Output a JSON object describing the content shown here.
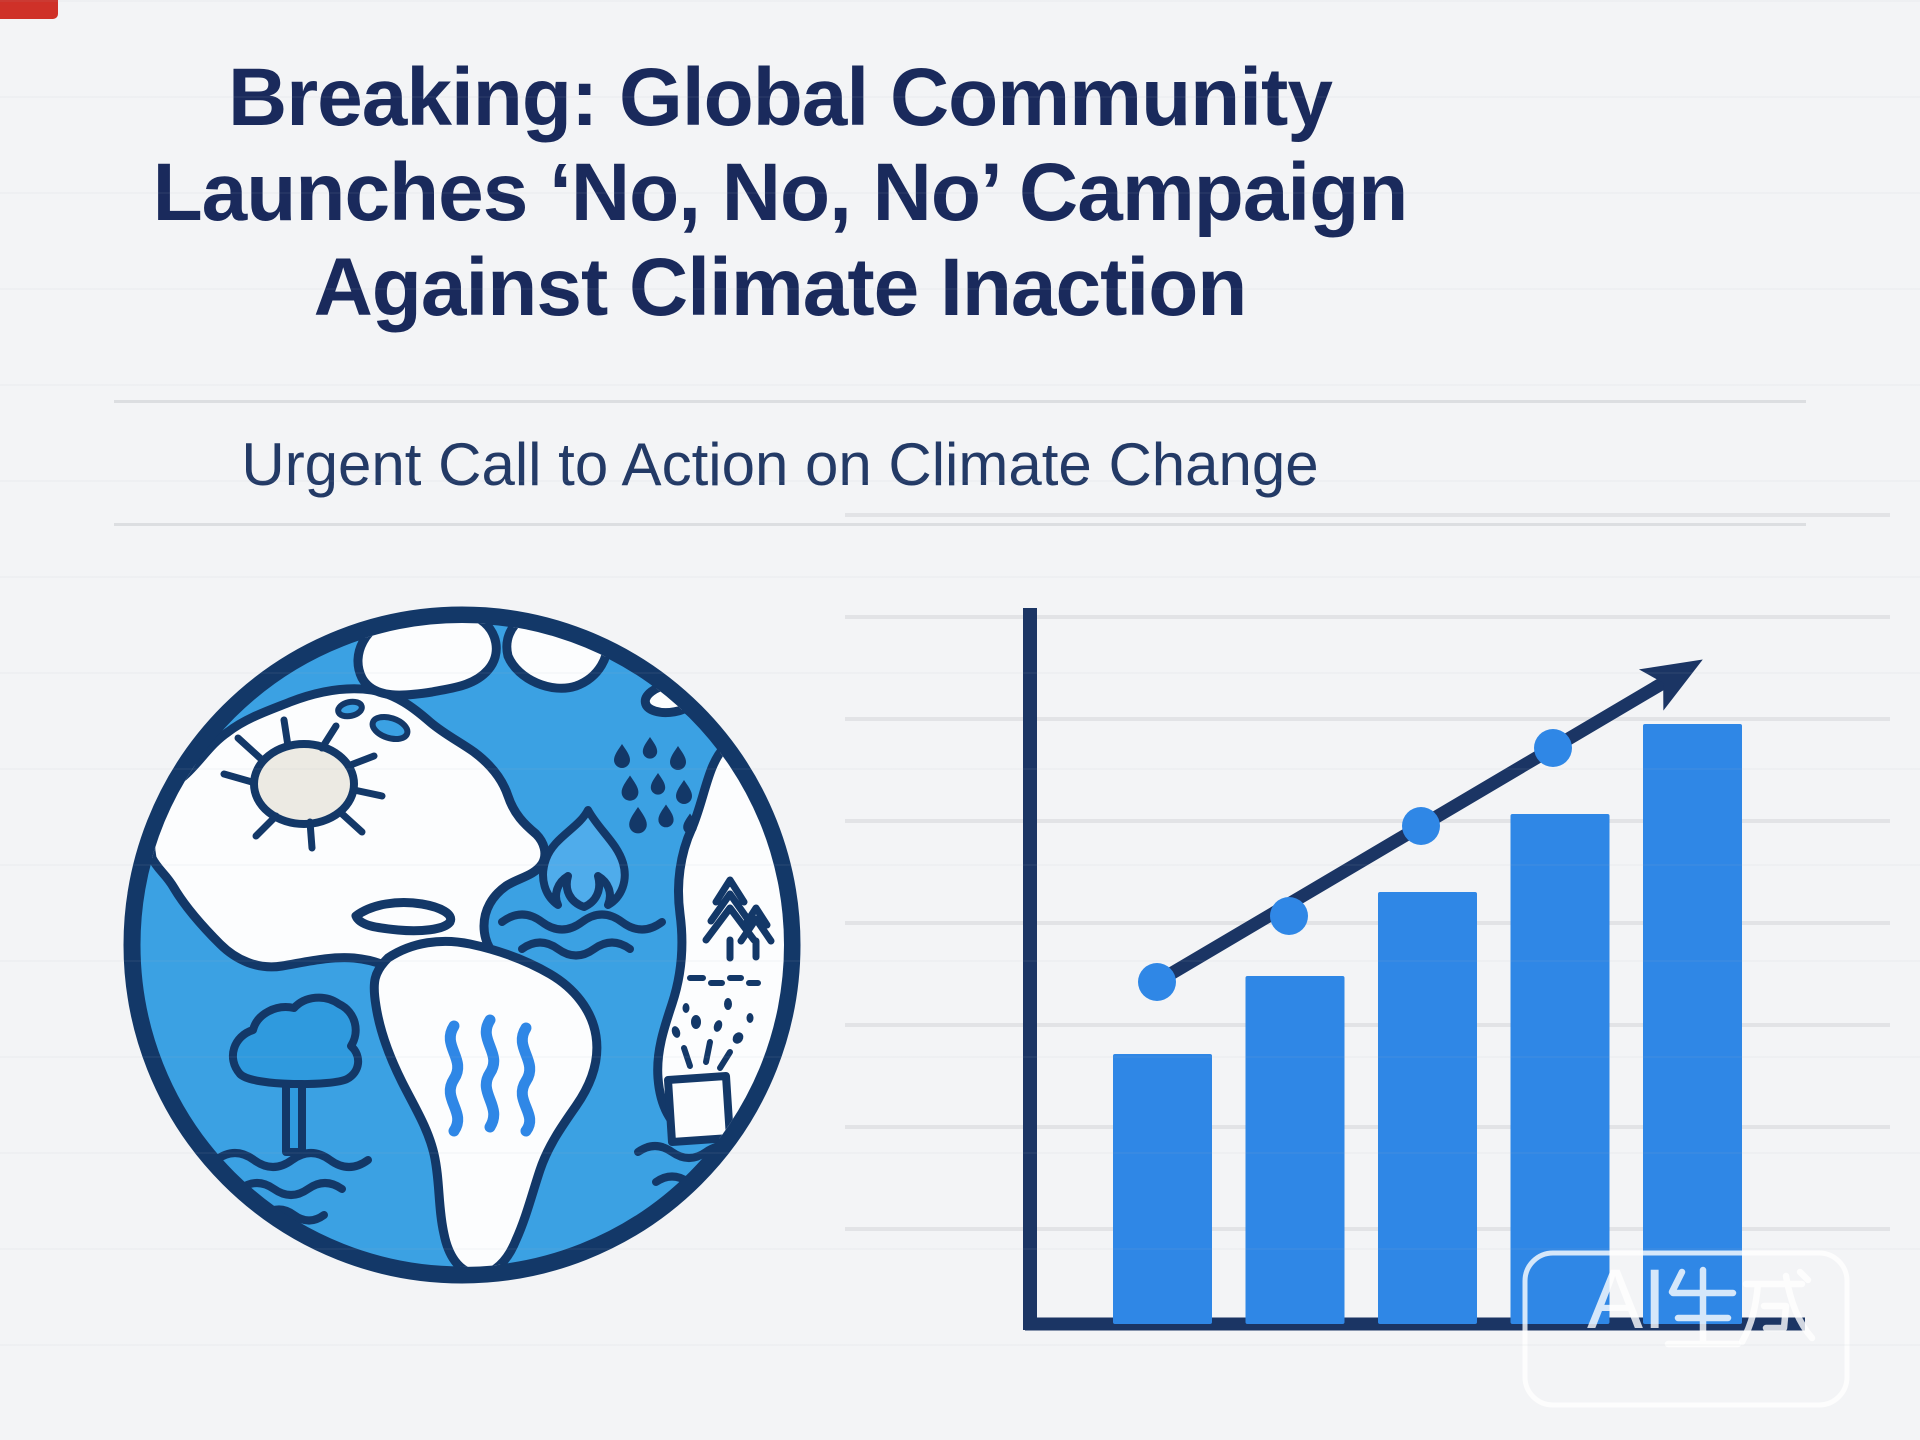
{
  "headline": {
    "lines": [
      "Breaking: Global Community",
      "Launches ‘No, No, No’ Campaign",
      "Against Climate Inaction"
    ]
  },
  "subtitle": {
    "text": "Urgent Call to Action on Climate Change"
  },
  "illustration": {
    "name": "globe-climate-line-art",
    "icons": [
      "globe-icon",
      "cracked-sun-drought-icon",
      "raindrops-icon",
      "wildfire-over-water-icon",
      "heat-waves-icon",
      "flooded-tree-icon",
      "flooded-house-icon",
      "pine-trees-icon"
    ]
  },
  "chart_data": {
    "type": "bar",
    "categories": [
      "",
      "",
      "",
      "",
      ""
    ],
    "series": [
      {
        "name": "bars",
        "type": "bar",
        "values": [
          45,
          58,
          72,
          85,
          100
        ]
      },
      {
        "name": "trend-line",
        "type": "line",
        "values": [
          57,
          68,
          83,
          96
        ],
        "arrow": true
      }
    ],
    "title": "",
    "xlabel": "",
    "ylabel": "",
    "ylim": [
      0,
      120
    ],
    "grid": true,
    "gridline_count": 8,
    "legend": "none",
    "axis_tick_labels": "none",
    "bar_color": "#2f87e6",
    "dot_color": "#2f87e6",
    "line_color": "#1b3564",
    "axis_color": "#1b3564",
    "gridline_color": "#e2e3e6"
  },
  "watermark": {
    "text": "AI生成"
  },
  "colors": {
    "background": "#f3f4f6",
    "headline": "#1a2a5c",
    "subtitle": "#233a66",
    "divider": "#dcdee1",
    "outline_navy": "#133868",
    "ocean_blue": "#3ba1e3",
    "land_white": "#fcfdfe",
    "accent_blue": "#2f87e6",
    "flame_blue": "#4faceb",
    "tree_blue": "#2f9ade",
    "sun_gray": "#eceae3",
    "axis_navy": "#1b3564",
    "gridline_gray": "#e2e3e6",
    "watermark_white": "rgba(255,255,255,0.8)",
    "corner_red": "#cf3128"
  }
}
